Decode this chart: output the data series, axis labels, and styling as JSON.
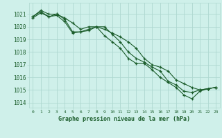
{
  "title": "Graphe pression niveau de la mer (hPa)",
  "background_color": "#cff0ea",
  "grid_color": "#aed8d0",
  "line_color": "#1a5c2a",
  "x_ticks": [
    0,
    1,
    2,
    3,
    4,
    5,
    6,
    7,
    8,
    9,
    10,
    11,
    12,
    13,
    14,
    15,
    16,
    17,
    18,
    19,
    20,
    21,
    22,
    23
  ],
  "ylim": [
    1013.6,
    1021.9
  ],
  "yticks": [
    1014,
    1015,
    1016,
    1017,
    1018,
    1019,
    1020,
    1021
  ],
  "series": [
    [
      1020.8,
      1021.3,
      1021.0,
      1021.0,
      1020.7,
      1020.3,
      1019.8,
      1020.0,
      1020.0,
      1019.8,
      1019.5,
      1019.2,
      1018.8,
      1018.3,
      1017.5,
      1017.0,
      1016.8,
      1016.5,
      1015.8,
      1015.5,
      1015.2,
      1015.0,
      1015.1,
      1015.2
    ],
    [
      1020.8,
      1021.2,
      1020.8,
      1021.0,
      1020.6,
      1019.6,
      1019.6,
      1019.8,
      1020.0,
      1019.3,
      1018.8,
      1018.3,
      1017.5,
      1017.1,
      1017.1,
      1016.6,
      1016.0,
      1015.6,
      1015.2,
      1014.6,
      1014.3,
      1014.9,
      1015.1,
      1015.2
    ],
    [
      1020.7,
      1021.1,
      1020.8,
      1020.9,
      1020.4,
      1019.5,
      1019.6,
      1019.7,
      1020.0,
      1020.0,
      1019.4,
      1018.8,
      1018.0,
      1017.5,
      1017.2,
      1016.8,
      1016.5,
      1015.7,
      1015.4,
      1014.9,
      1014.8,
      1015.0,
      1015.1,
      1015.2
    ]
  ]
}
